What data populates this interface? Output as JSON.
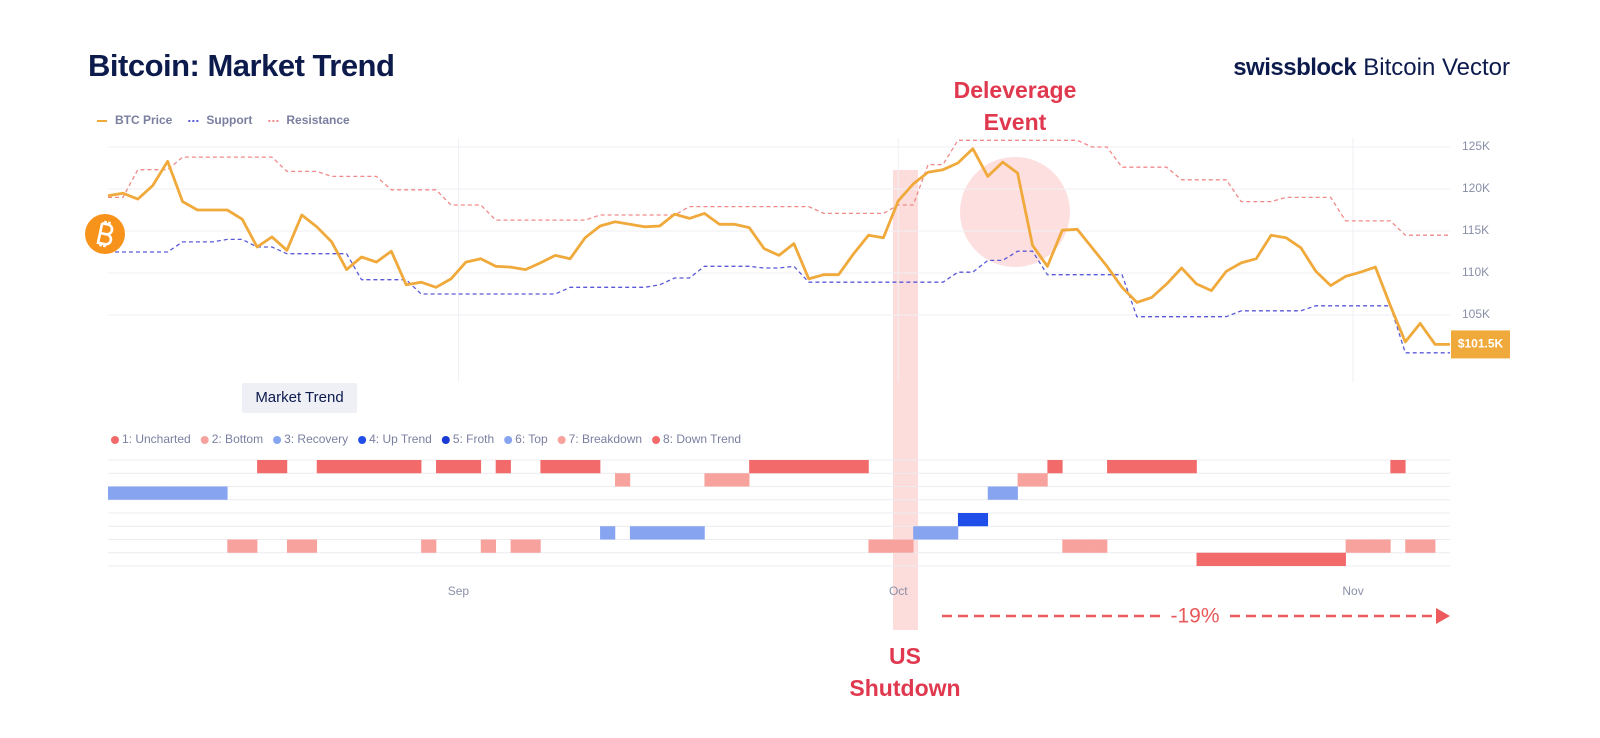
{
  "header": {
    "title": "Bitcoin: Market Trend",
    "brand": "swissblock",
    "brand_suffix": "Bitcoin Vector",
    "tab": "Market Trend"
  },
  "annotations": {
    "deleverage": "Deleverage Event",
    "shutdown": "US Shutdown",
    "change": "-19%"
  },
  "chart_data": [
    {
      "type": "line",
      "x": [
        -24,
        -23,
        -22,
        -21,
        -20,
        -19,
        -18,
        -17,
        -16,
        -15,
        -14,
        -13,
        -12,
        -11,
        -10,
        -9,
        -8,
        -7,
        -6,
        -5,
        -4,
        -3,
        -2,
        -1,
        0,
        1,
        2,
        3,
        4,
        5,
        6,
        7,
        8,
        9,
        10,
        11,
        12,
        13,
        14,
        15,
        16,
        17,
        18,
        19,
        20,
        21,
        22,
        23,
        24,
        25,
        26,
        27,
        28,
        29,
        30,
        31,
        32,
        33,
        34,
        35,
        36,
        37,
        38,
        39,
        40,
        41,
        42,
        43,
        44,
        45,
        46,
        47,
        48,
        49,
        50,
        51,
        52,
        53,
        54,
        55,
        56,
        57,
        58,
        59,
        60,
        61,
        62,
        63,
        64,
        65,
        66
      ],
      "xlim": [
        -24,
        66
      ],
      "ylim": [
        98000,
        126000
      ],
      "yticks": [
        {
          "value": 105000,
          "label": "105K"
        },
        {
          "value": 110000,
          "label": "110K"
        },
        {
          "value": 115000,
          "label": "115K"
        },
        {
          "value": 120000,
          "label": "120K"
        },
        {
          "value": 125000,
          "label": "125K"
        }
      ],
      "grid": true,
      "series": [
        {
          "name": "Resistance",
          "color": "#f08a8a",
          "style": "dashed",
          "values": [
            119000,
            119000,
            122300,
            122300,
            122300,
            123800,
            123800,
            123800,
            123800,
            123800,
            123800,
            123800,
            122100,
            122100,
            122100,
            121500,
            121500,
            121500,
            121500,
            119900,
            119900,
            119900,
            119900,
            118100,
            118100,
            118100,
            116300,
            116300,
            116300,
            116300,
            116300,
            116300,
            116300,
            116900,
            116900,
            116900,
            116900,
            116900,
            116900,
            117900,
            117900,
            117900,
            117900,
            117900,
            117900,
            117900,
            117900,
            117900,
            117100,
            117100,
            117100,
            117100,
            117100,
            118100,
            118100,
            122900,
            122900,
            125800,
            125800,
            125800,
            125800,
            125800,
            125800,
            125800,
            125800,
            125800,
            125000,
            125000,
            122600,
            122600,
            122600,
            122600,
            121100,
            121100,
            121100,
            121100,
            118500,
            118500,
            118500,
            119000,
            119000,
            119000,
            119000,
            116200,
            116200,
            116200,
            116200,
            114500,
            114500,
            114500,
            114500
          ]
        },
        {
          "name": "Support",
          "color": "#5a5ad8",
          "style": "dashed",
          "values": [
            112500,
            112500,
            112500,
            112500,
            112500,
            113700,
            113700,
            113700,
            114000,
            114000,
            113100,
            113100,
            112300,
            112300,
            112300,
            112300,
            112300,
            109200,
            109200,
            109200,
            109200,
            107500,
            107500,
            107500,
            107500,
            107500,
            107500,
            107500,
            107500,
            107500,
            107500,
            108300,
            108300,
            108300,
            108300,
            108300,
            108300,
            108600,
            109400,
            109400,
            110800,
            110800,
            110800,
            110800,
            110600,
            110600,
            110800,
            108900,
            108900,
            108900,
            108900,
            108900,
            108900,
            108900,
            108900,
            108900,
            108900,
            110100,
            110100,
            111500,
            111500,
            112600,
            112600,
            109800,
            109800,
            109800,
            109800,
            109800,
            109800,
            104800,
            104800,
            104800,
            104800,
            104800,
            104800,
            104800,
            105500,
            105500,
            105500,
            105500,
            105500,
            106100,
            106100,
            106100,
            106100,
            106100,
            106100,
            100500,
            100500,
            100500,
            100500
          ]
        },
        {
          "name": "BTC Price",
          "color": "#f0a93b",
          "style": "solid",
          "values": [
            119200,
            119500,
            118800,
            120400,
            123300,
            118500,
            117500,
            117500,
            117500,
            116400,
            113100,
            114300,
            112700,
            116900,
            115500,
            113700,
            110400,
            111900,
            111300,
            112600,
            108600,
            108900,
            108300,
            109300,
            111300,
            111700,
            110800,
            110700,
            110400,
            111200,
            112100,
            111700,
            114200,
            115600,
            116100,
            115800,
            115500,
            115600,
            117000,
            116500,
            117100,
            115800,
            115800,
            115400,
            112900,
            112100,
            113500,
            109300,
            109800,
            109800,
            112300,
            114500,
            114200,
            118600,
            120600,
            122000,
            122300,
            123100,
            124800,
            121500,
            123200,
            121900,
            113300,
            110800,
            115100,
            115200,
            113000,
            110800,
            108300,
            106500,
            107100,
            108700,
            110600,
            108700,
            107900,
            110200,
            111200,
            111700,
            114500,
            114200,
            113000,
            110200,
            108500,
            109600,
            110100,
            110700,
            106100,
            101800,
            104000,
            101500,
            101500
          ],
          "value_labels": [
            null,
            null,
            null,
            null,
            null,
            null,
            null,
            null,
            null,
            null,
            null,
            null,
            null,
            null,
            null,
            null,
            null,
            null,
            null,
            null,
            null,
            null,
            null,
            null,
            null,
            null,
            null,
            null,
            null,
            null,
            null,
            null,
            null,
            null,
            null,
            null,
            null,
            null,
            null,
            null,
            null,
            null,
            null,
            null,
            null,
            null,
            null,
            null,
            null,
            null,
            null,
            null,
            null,
            null,
            null,
            null,
            null,
            null,
            null,
            null,
            null,
            null,
            null,
            null,
            null,
            null,
            null,
            null,
            null,
            null,
            null,
            null,
            null,
            null,
            null,
            null,
            null,
            null,
            null,
            null,
            null,
            null,
            null,
            null,
            null,
            null,
            null,
            null,
            null,
            null,
            "$101.5K"
          ]
        }
      ]
    },
    {
      "type": "step",
      "x": [
        -24,
        -23,
        -22,
        -21,
        -20,
        -19,
        -18,
        -17,
        -16,
        -15,
        -14,
        -13,
        -12,
        -11,
        -10,
        -9,
        -8,
        -7,
        -6,
        -5,
        -4,
        -3,
        -2,
        -1,
        0,
        1,
        2,
        3,
        4,
        5,
        6,
        7,
        8,
        9,
        10,
        11,
        12,
        13,
        14,
        15,
        16,
        17,
        18,
        19,
        20,
        21,
        22,
        23,
        24,
        25,
        26,
        27,
        28,
        29,
        30,
        31,
        32,
        33,
        34,
        35,
        36,
        37,
        38,
        39,
        40,
        41,
        42,
        43,
        44,
        45,
        46,
        47,
        48,
        49,
        50,
        51,
        52,
        53,
        54,
        55,
        56,
        57,
        58,
        59,
        60,
        61,
        62,
        63,
        64
      ],
      "xlim": [
        -24,
        66
      ],
      "xticks": [
        {
          "value": -0.5,
          "label": "Sep"
        },
        {
          "value": 29,
          "label": "Oct"
        },
        {
          "value": 59.5,
          "label": "Nov"
        }
      ],
      "ylim": [
        0.5,
        8.5
      ],
      "states": [
        {
          "name": "1: Uncharted",
          "color": "#f26a6a"
        },
        {
          "name": "2: Bottom",
          "color": "#f7a29c"
        },
        {
          "name": "3: Recovery",
          "color": "#86a4ef"
        },
        {
          "name": "4: Up Trend",
          "color": "#1f4fe8"
        },
        {
          "name": "5: Froth",
          "color": "#1a3ad6"
        },
        {
          "name": "6: Top",
          "color": "#86a4ef"
        },
        {
          "name": "7: Breakdown",
          "color": "#f7a29c"
        },
        {
          "name": "8: Down Trend",
          "color": "#f26a6a"
        }
      ],
      "values": [
        6,
        6,
        6,
        6,
        6,
        6,
        6,
        6,
        2,
        2,
        8,
        8,
        2,
        2,
        8,
        8,
        8,
        8,
        8,
        8,
        8,
        2,
        8,
        8,
        8,
        2,
        8,
        2,
        2,
        8,
        8,
        8,
        8,
        3,
        7,
        3,
        3,
        3,
        3,
        3,
        7,
        7,
        7,
        8,
        8,
        8,
        8,
        8,
        8,
        8,
        8,
        2,
        2,
        2,
        3,
        3,
        3,
        4,
        4,
        6,
        6,
        7,
        7,
        8,
        2,
        2,
        2,
        8,
        8,
        8,
        8,
        8,
        8,
        1,
        1,
        1,
        1,
        1,
        1,
        1,
        1,
        1,
        1,
        2,
        2,
        2,
        8,
        2,
        2
      ]
    }
  ]
}
